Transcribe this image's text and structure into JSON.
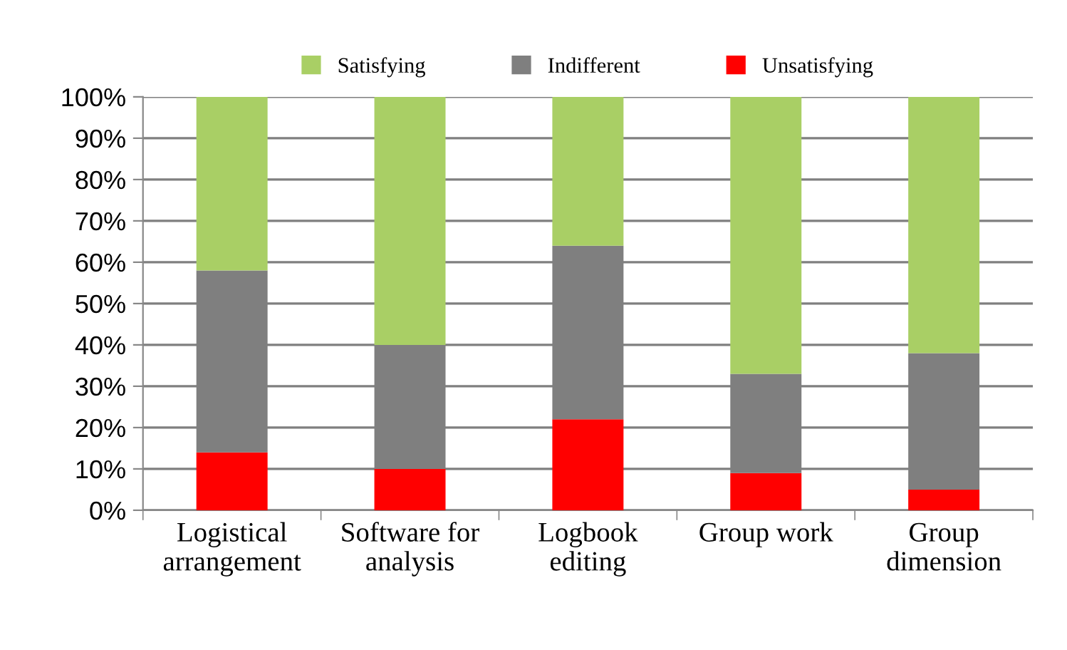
{
  "chart_data": {
    "type": "bar",
    "stacked": true,
    "categories": [
      "Logistical\narrangement",
      "Software for\nanalysis",
      "Logbook\nediting",
      "Group work",
      "Group\ndimension"
    ],
    "series": [
      {
        "name": "Unsatisfying",
        "color": "#ff0000",
        "values": [
          14,
          10,
          22,
          9,
          5
        ]
      },
      {
        "name": "Indifferent",
        "color": "#7f7f7f",
        "values": [
          44,
          30,
          42,
          24,
          33
        ]
      },
      {
        "name": "Satisfying",
        "color": "#a9cf65",
        "values": [
          42,
          60,
          36,
          67,
          62
        ]
      }
    ],
    "ylim": [
      0,
      100
    ],
    "yticks": [
      {
        "value": 0,
        "label": "0%"
      },
      {
        "value": 10,
        "label": "10%"
      },
      {
        "value": 20,
        "label": "20%"
      },
      {
        "value": 30,
        "label": "30%"
      },
      {
        "value": 40,
        "label": "40%"
      },
      {
        "value": 50,
        "label": "50%"
      },
      {
        "value": 60,
        "label": "60%"
      },
      {
        "value": 70,
        "label": "70%"
      },
      {
        "value": 80,
        "label": "80%"
      },
      {
        "value": 90,
        "label": "90%"
      },
      {
        "value": 100,
        "label": "100%"
      }
    ],
    "grid": "y",
    "legend": "top"
  }
}
